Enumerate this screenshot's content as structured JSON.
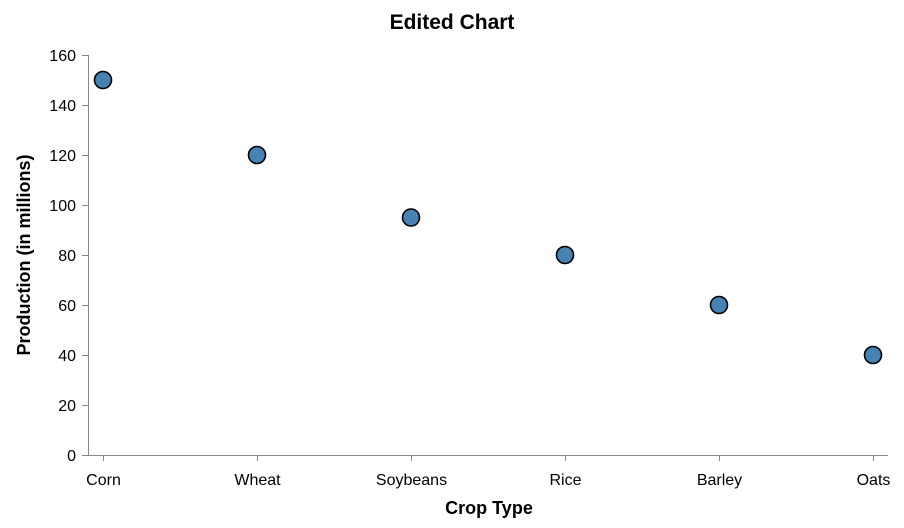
{
  "chart_data": {
    "type": "scatter",
    "title": "Edited Chart",
    "xlabel": "Crop Type",
    "ylabel": "Production (in millions)",
    "categories": [
      "Corn",
      "Wheat",
      "Soybeans",
      "Rice",
      "Barley",
      "Oats"
    ],
    "values": [
      150,
      120,
      95,
      80,
      60,
      40
    ],
    "ylim": [
      0,
      160
    ],
    "yticks": [
      0,
      20,
      40,
      60,
      80,
      100,
      120,
      140,
      160
    ],
    "grid": false,
    "colors": {
      "point_fill": "#4682b4",
      "point_stroke": "#000000",
      "axis": "#888888"
    }
  }
}
